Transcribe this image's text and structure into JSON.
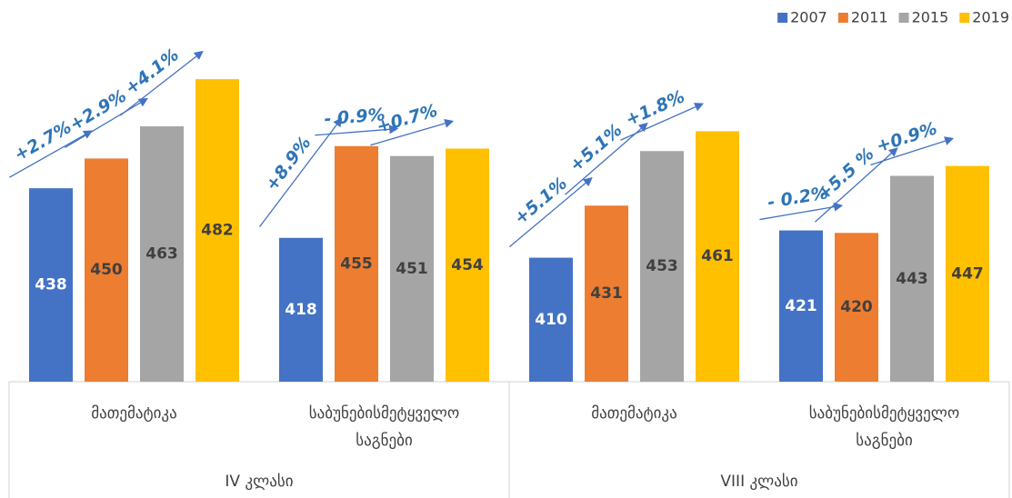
{
  "chart_data": {
    "type": "bar",
    "categories": [
      "მათემატიკა",
      "საბუნებისმეტყველო საგნები",
      "მათემატიკა",
      "საბუნებისმეტყველო საგნები"
    ],
    "category_groups": [
      "IV კლასი",
      "VIII კლასი"
    ],
    "series": [
      {
        "name": "2007",
        "color": "#4472c4",
        "label_color": "#ffffff",
        "values": [
          438,
          418,
          410,
          421
        ]
      },
      {
        "name": "2011",
        "color": "#ed7d31",
        "label_color": "#404040",
        "values": [
          450,
          455,
          431,
          420
        ]
      },
      {
        "name": "2015",
        "color": "#a5a5a5",
        "label_color": "#404040",
        "values": [
          463,
          451,
          453,
          443
        ]
      },
      {
        "name": "2019",
        "color": "#ffc000",
        "label_color": "#404040",
        "values": [
          482,
          454,
          461,
          447
        ]
      }
    ],
    "ylim": [
      360,
      500
    ],
    "legend": "top-right",
    "annotations": [
      [
        "+2.7%",
        "+2.9%",
        "+4.1%"
      ],
      [
        "+8.9%",
        "- 0.9%",
        "+0.7%"
      ],
      [
        "+5.1%",
        "+5.1%",
        "+1.8%"
      ],
      [
        "- 0.2%",
        "+5.5 %",
        "+0.9%"
      ]
    ]
  }
}
